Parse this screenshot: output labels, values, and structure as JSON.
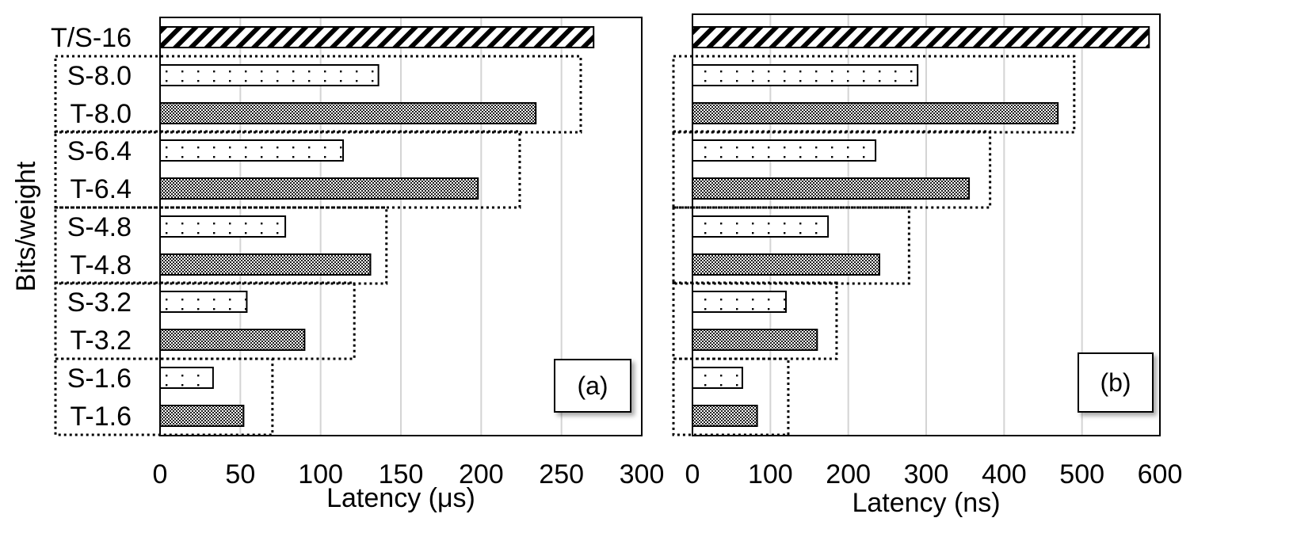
{
  "chart_data": [
    {
      "type": "bar",
      "orientation": "horizontal",
      "panel_label": "(a)",
      "ylabel": "Bits/weight",
      "xlabel": "Latency (μs)",
      "xlim": [
        0,
        300
      ],
      "xticks": [
        "0",
        "50",
        "100",
        "150",
        "200",
        "250",
        "300"
      ],
      "grid": "vertical",
      "categories": [
        "T/S-16",
        "S-8.0",
        "T-8.0",
        "S-6.4",
        "T-6.4",
        "S-4.8",
        "T-4.8",
        "S-3.2",
        "T-3.2",
        "S-1.6",
        "T-1.6"
      ],
      "values": [
        270,
        136,
        234,
        114,
        198,
        78,
        131,
        54,
        90,
        33,
        52
      ],
      "patterns": [
        "diag",
        "dots",
        "dense",
        "dots",
        "dense",
        "dots",
        "dense",
        "dots",
        "dense",
        "dots",
        "dense"
      ],
      "groups": [
        {
          "categories": [
            "S-8.0",
            "T-8.0"
          ],
          "extent": 262
        },
        {
          "categories": [
            "S-6.4",
            "T-6.4"
          ],
          "extent": 224
        },
        {
          "categories": [
            "S-4.8",
            "T-4.8"
          ],
          "extent": 141
        },
        {
          "categories": [
            "S-3.2",
            "T-3.2"
          ],
          "extent": 121
        },
        {
          "categories": [
            "S-1.6",
            "T-1.6"
          ],
          "extent": 70
        }
      ]
    },
    {
      "type": "bar",
      "orientation": "horizontal",
      "panel_label": "(b)",
      "xlabel": "Latency (ns)",
      "xlim": [
        0,
        600
      ],
      "xticks": [
        "0",
        "100",
        "200",
        "300",
        "400",
        "500",
        "600"
      ],
      "grid": "vertical",
      "categories": [
        "T/S-16",
        "S-8.0",
        "T-8.0",
        "S-6.4",
        "T-6.4",
        "S-4.8",
        "T-4.8",
        "S-3.2",
        "T-3.2",
        "S-1.6",
        "T-1.6"
      ],
      "values": [
        586,
        289,
        469,
        235,
        355,
        174,
        240,
        120,
        160,
        64,
        83
      ],
      "patterns": [
        "diag",
        "dots",
        "dense",
        "dots",
        "dense",
        "dots",
        "dense",
        "dots",
        "dense",
        "dots",
        "dense"
      ],
      "groups": [
        {
          "categories": [
            "S-8.0",
            "T-8.0"
          ],
          "extent": 490
        },
        {
          "categories": [
            "S-6.4",
            "T-6.4"
          ],
          "extent": 382
        },
        {
          "categories": [
            "S-4.8",
            "T-4.8"
          ],
          "extent": 278
        },
        {
          "categories": [
            "S-3.2",
            "T-3.2"
          ],
          "extent": 185
        },
        {
          "categories": [
            "S-1.6",
            "T-1.6"
          ],
          "extent": 123
        }
      ]
    }
  ]
}
